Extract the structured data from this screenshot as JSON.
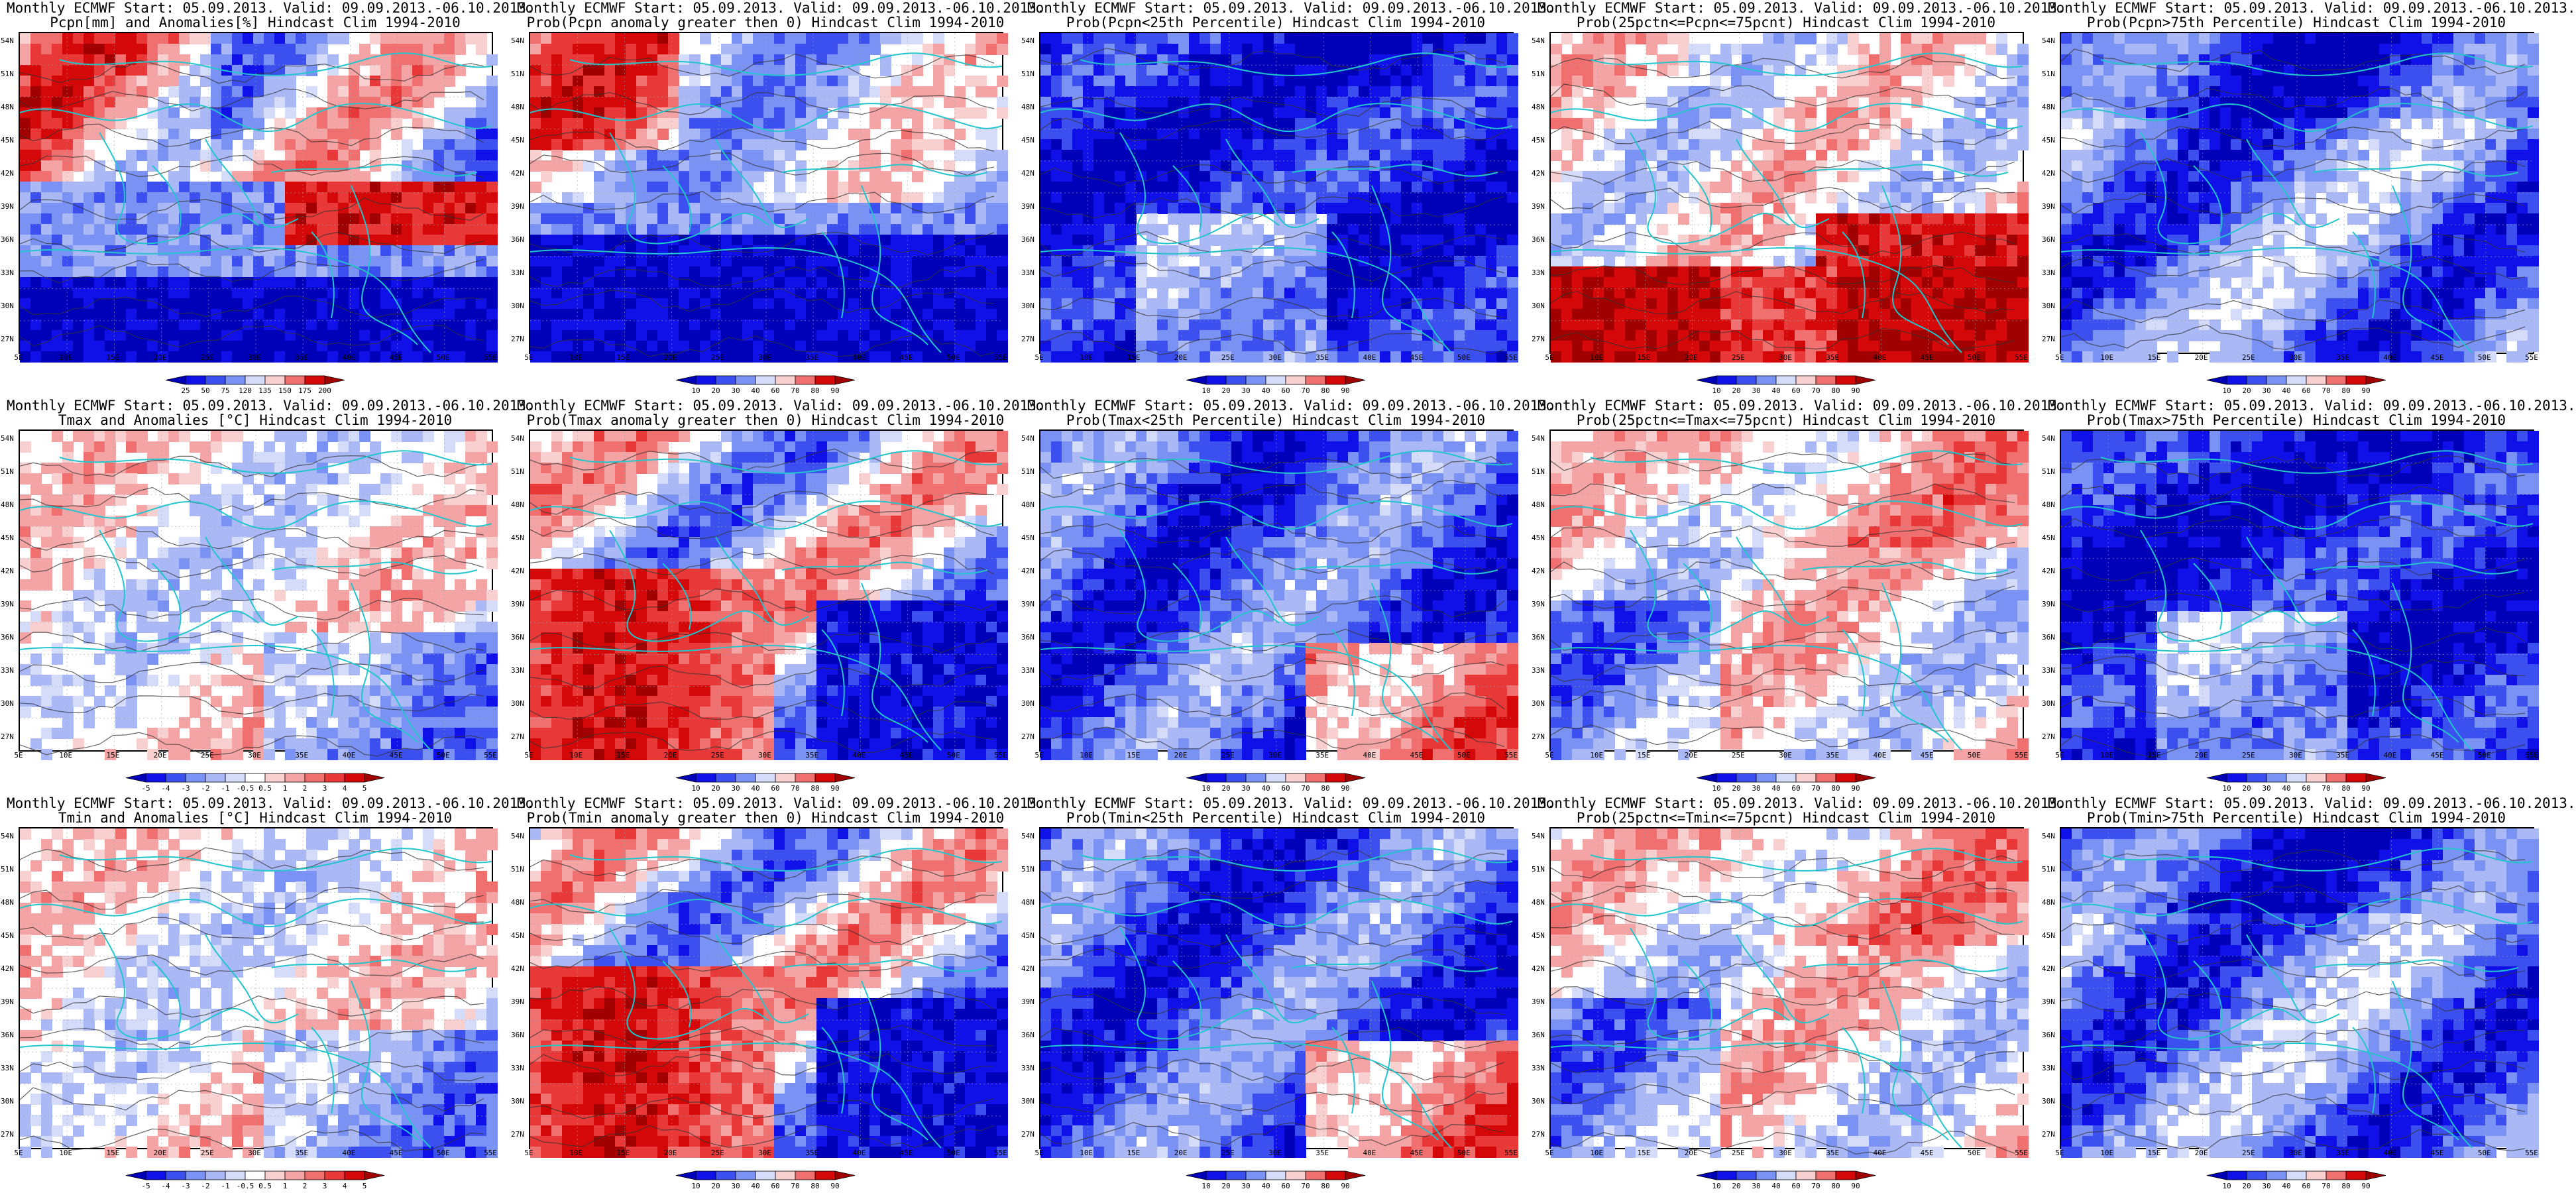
{
  "lat_labels": [
    "54N",
    "51N",
    "48N",
    "45N",
    "42N",
    "39N",
    "36N",
    "33N",
    "30N",
    "27N"
  ],
  "lon_labels": [
    "5E",
    "10E",
    "15E",
    "20E",
    "25E",
    "30E",
    "35E",
    "40E",
    "45E",
    "50E",
    "55E"
  ],
  "colors": {
    "coast": "#22c5cc",
    "contour": "#333333",
    "blue_scale": [
      "#0000b8",
      "#1010e8",
      "#3c50f0",
      "#7a92f4",
      "#aab8f6",
      "#d4dcfa"
    ],
    "red_scale": [
      "#f8d0d0",
      "#f4a4a4",
      "#f07070",
      "#e83838",
      "#d40808",
      "#a00000"
    ]
  },
  "panels": [
    {
      "row": 0,
      "col": 0,
      "title1": "Monthly ECMWF Start: 05.09.2013. Valid: 09.09.2013.-06.10.2013.",
      "title2": "Pcpn[mm] and Anomalies[%] Hindcast Clim 1994-2010",
      "cbar": [
        "25",
        "50",
        "75",
        "120",
        "135",
        "150",
        "175",
        "200"
      ],
      "scheme": "anom-pcpn"
    },
    {
      "row": 0,
      "col": 1,
      "title1": "Monthly ECMWF Start: 05.09.2013. Valid: 09.09.2013.-06.10.2013.",
      "title2": "Prob(Pcpn anomaly greater then 0) Hindcast Clim 1994-2010",
      "cbar": [
        "10",
        "20",
        "30",
        "40",
        "60",
        "70",
        "80",
        "90"
      ],
      "scheme": "prob-pos"
    },
    {
      "row": 0,
      "col": 2,
      "title1": "Monthly ECMWF Start: 05.09.2013. Valid: 09.09.2013.-06.10.2013.",
      "title2": "Prob(Pcpn<25th Percentile) Hindcast Clim 1994-2010",
      "cbar": [
        "10",
        "20",
        "30",
        "40",
        "60",
        "70",
        "80",
        "90"
      ],
      "scheme": "deep-blue"
    },
    {
      "row": 0,
      "col": 3,
      "title1": "Monthly ECMWF Start: 05.09.2013. Valid: 09.09.2013.-06.10.2013.",
      "title2": "Prob(25pctn<=Pcpn<=75pcnt) Hindcast Clim 1994-2010",
      "cbar": [
        "10",
        "20",
        "30",
        "40",
        "60",
        "70",
        "80",
        "90"
      ],
      "scheme": "red-south"
    },
    {
      "row": 0,
      "col": 4,
      "title1": "Monthly ECMWF Start: 05.09.2013. Valid: 09.09.2013.-06.10.2013.",
      "title2": "Prob(Pcpn>75th Percentile) Hindcast Clim 1994-2010",
      "cbar": [
        "10",
        "20",
        "30",
        "40",
        "60",
        "70",
        "80",
        "90"
      ],
      "scheme": "blue-mixed"
    },
    {
      "row": 1,
      "col": 0,
      "title1": "Monthly ECMWF Start: 05.09.2013. Valid: 09.09.2013.-06.10.2013.",
      "title2": "Tmax and Anomalies [°C] Hindcast Clim 1994-2010",
      "cbar": [
        "-5",
        "-4",
        "-3",
        "-2",
        "-1",
        "-0.5",
        "0.5",
        "1",
        "2",
        "3",
        "4",
        "5"
      ],
      "scheme": "anom-light"
    },
    {
      "row": 1,
      "col": 1,
      "title1": "Monthly ECMWF Start: 05.09.2013. Valid: 09.09.2013.-06.10.2013.",
      "title2": "Prob(Tmax anomaly greater then 0) Hindcast Clim 1994-2010",
      "cbar": [
        "10",
        "20",
        "30",
        "40",
        "60",
        "70",
        "80",
        "90"
      ],
      "scheme": "mixed-rb"
    },
    {
      "row": 1,
      "col": 2,
      "title1": "Monthly ECMWF Start: 05.09.2013. Valid: 09.09.2013.-06.10.2013.",
      "title2": "Prob(Tmax<25th Percentile) Hindcast Clim 1994-2010",
      "cbar": [
        "10",
        "20",
        "30",
        "40",
        "60",
        "70",
        "80",
        "90"
      ],
      "scheme": "blue-mid"
    },
    {
      "row": 1,
      "col": 3,
      "title1": "Monthly ECMWF Start: 05.09.2013. Valid: 09.09.2013.-06.10.2013.",
      "title2": "Prob(25pctn<=Tmax<=75pcnt) Hindcast Clim 1994-2010",
      "cbar": [
        "10",
        "20",
        "30",
        "40",
        "60",
        "70",
        "80",
        "90"
      ],
      "scheme": "light-mixed"
    },
    {
      "row": 1,
      "col": 4,
      "title1": "Monthly ECMWF Start: 05.09.2013. Valid: 09.09.2013.-06.10.2013.",
      "title2": "Prob(Tmax>75th Percentile) Hindcast Clim 1994-2010",
      "cbar": [
        "10",
        "20",
        "30",
        "40",
        "60",
        "70",
        "80",
        "90"
      ],
      "scheme": "deep-blue"
    },
    {
      "row": 2,
      "col": 0,
      "title1": "Monthly ECMWF Start: 05.09.2013. Valid: 09.09.2013.-06.10.2013.",
      "title2": "Tmin and Anomalies [°C] Hindcast Clim 1994-2010",
      "cbar": [
        "-5",
        "-4",
        "-3",
        "-2",
        "-1",
        "-0.5",
        "0.5",
        "1",
        "2",
        "3",
        "4",
        "5"
      ],
      "scheme": "anom-light"
    },
    {
      "row": 2,
      "col": 1,
      "title1": "Monthly ECMWF Start: 05.09.2013. Valid: 09.09.2013.-06.10.2013.",
      "title2": "Prob(Tmin anomaly greater then 0) Hindcast Clim 1994-2010",
      "cbar": [
        "10",
        "20",
        "30",
        "40",
        "60",
        "70",
        "80",
        "90"
      ],
      "scheme": "mixed-rb"
    },
    {
      "row": 2,
      "col": 2,
      "title1": "Monthly ECMWF Start: 05.09.2013. Valid: 09.09.2013.-06.10.2013.",
      "title2": "Prob(Tmin<25th Percentile) Hindcast Clim 1994-2010",
      "cbar": [
        "10",
        "20",
        "30",
        "40",
        "60",
        "70",
        "80",
        "90"
      ],
      "scheme": "blue-mid"
    },
    {
      "row": 2,
      "col": 3,
      "title1": "Monthly ECMWF Start: 05.09.2013. Valid: 09.09.2013.-06.10.2013.",
      "title2": "Prob(25pctn<=Tmin<=75pcnt) Hindcast Clim 1994-2010",
      "cbar": [
        "10",
        "20",
        "30",
        "40",
        "60",
        "70",
        "80",
        "90"
      ],
      "scheme": "light-mixed"
    },
    {
      "row": 2,
      "col": 4,
      "title1": "Monthly ECMWF Start: 05.09.2013. Valid: 09.09.2013.-06.10.2013.",
      "title2": "Prob(Tmin>75th Percentile) Hindcast Clim 1994-2010",
      "cbar": [
        "10",
        "20",
        "30",
        "40",
        "60",
        "70",
        "80",
        "90"
      ],
      "scheme": "blue-mixed"
    }
  ]
}
